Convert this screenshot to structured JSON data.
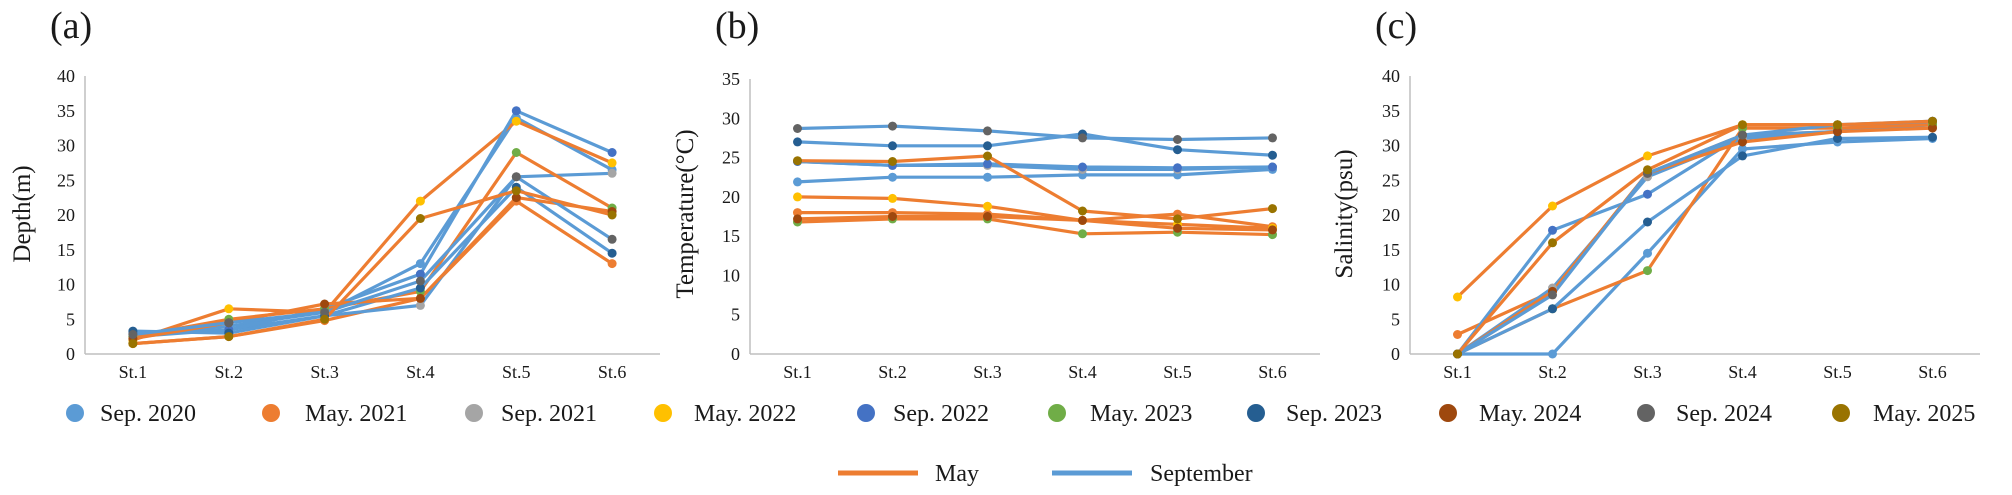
{
  "legend_items": [
    {
      "label": "Sep. 2020",
      "color": "#5b9bd5"
    },
    {
      "label": "May. 2021",
      "color": "#ed7d31"
    },
    {
      "label": "Sep. 2021",
      "color": "#a5a5a5"
    },
    {
      "label": "May. 2022",
      "color": "#ffc000"
    },
    {
      "label": "Sep. 2022",
      "color": "#4472c4"
    },
    {
      "label": "May. 2023",
      "color": "#70ad47"
    },
    {
      "label": "Sep. 2023",
      "color": "#255e91"
    },
    {
      "label": "May. 2024",
      "color": "#9e480e"
    },
    {
      "label": "Sep. 2024",
      "color": "#636363"
    },
    {
      "label": "May. 2025",
      "color": "#997300"
    }
  ],
  "line_legend": [
    {
      "label": "May",
      "color": "#ed7d31"
    },
    {
      "label": "September",
      "color": "#5b9bd5"
    }
  ],
  "chart_data": [
    {
      "type": "line",
      "panel_label": "(a)",
      "ylabel": "Depth(m)",
      "categories": [
        "St.1",
        "St.2",
        "St.3",
        "St.4",
        "St.5",
        "St.6"
      ],
      "ylim": [
        0,
        40
      ],
      "yticks": [
        0,
        5,
        10,
        15,
        20,
        25,
        30,
        35,
        40
      ],
      "grid": false,
      "series": [
        {
          "name": "Sep. 2020",
          "line": "#5b9bd5",
          "color": "#5b9bd5",
          "values": [
            2.8,
            4.0,
            6.0,
            13.0,
            34.0,
            26.5
          ]
        },
        {
          "name": "May. 2021",
          "line": "#ed7d31",
          "color": "#ed7d31",
          "values": [
            1.5,
            2.5,
            4.8,
            8.0,
            22.0,
            13.0
          ]
        },
        {
          "name": "Sep. 2021",
          "line": "#5b9bd5",
          "color": "#a5a5a5",
          "values": [
            2.5,
            3.5,
            5.5,
            7.0,
            25.5,
            26.0
          ]
        },
        {
          "name": "May. 2022",
          "line": "#ed7d31",
          "color": "#ffc000",
          "values": [
            2.0,
            6.5,
            6.0,
            22.0,
            33.5,
            27.5
          ]
        },
        {
          "name": "Sep. 2022",
          "line": "#5b9bd5",
          "color": "#4472c4",
          "values": [
            3.0,
            3.5,
            6.5,
            11.5,
            35.0,
            29.0
          ]
        },
        {
          "name": "May. 2023",
          "line": "#ed7d31",
          "color": "#70ad47",
          "values": [
            2.5,
            5.0,
            6.5,
            9.0,
            29.0,
            21.0
          ]
        },
        {
          "name": "Sep. 2023",
          "line": "#5b9bd5",
          "color": "#255e91",
          "values": [
            3.3,
            3.0,
            5.5,
            9.5,
            24.0,
            14.5
          ]
        },
        {
          "name": "May. 2024",
          "line": "#ed7d31",
          "color": "#9e480e",
          "values": [
            2.2,
            4.5,
            7.2,
            8.0,
            22.5,
            20.5
          ]
        },
        {
          "name": "Sep. 2024",
          "line": "#5b9bd5",
          "color": "#636363",
          "values": [
            2.8,
            4.5,
            6.0,
            10.5,
            25.5,
            16.5
          ]
        },
        {
          "name": "May. 2025",
          "line": "#ed7d31",
          "color": "#997300",
          "values": [
            1.5,
            2.5,
            5.0,
            19.5,
            23.5,
            20.0
          ]
        }
      ]
    },
    {
      "type": "line",
      "panel_label": "(b)",
      "ylabel": "Temperature(°C)",
      "categories": [
        "St.1",
        "St.2",
        "St.3",
        "St.4",
        "St.5",
        "St.6"
      ],
      "ylim": [
        0,
        35
      ],
      "yticks": [
        0,
        5,
        10,
        15,
        20,
        25,
        30,
        35
      ],
      "grid": false,
      "series": [
        {
          "name": "Sep. 2020",
          "line": "#5b9bd5",
          "color": "#5b9bd5",
          "values": [
            21.9,
            22.5,
            22.5,
            22.8,
            22.8,
            23.5
          ]
        },
        {
          "name": "May. 2021",
          "line": "#ed7d31",
          "color": "#ed7d31",
          "values": [
            18.0,
            18.0,
            17.8,
            17.0,
            17.8,
            16.2
          ]
        },
        {
          "name": "Sep. 2021",
          "line": "#5b9bd5",
          "color": "#a5a5a5",
          "values": [
            24.5,
            24.0,
            24.0,
            23.5,
            23.5,
            23.8
          ]
        },
        {
          "name": "May. 2022",
          "line": "#ed7d31",
          "color": "#ffc000",
          "values": [
            20.0,
            19.8,
            18.8,
            17.0,
            16.5,
            16.0
          ]
        },
        {
          "name": "Sep. 2022",
          "line": "#5b9bd5",
          "color": "#4472c4",
          "values": [
            24.5,
            24.0,
            24.2,
            23.8,
            23.7,
            23.8
          ]
        },
        {
          "name": "May. 2023",
          "line": "#ed7d31",
          "color": "#70ad47",
          "values": [
            16.8,
            17.2,
            17.2,
            15.3,
            15.5,
            15.2
          ]
        },
        {
          "name": "Sep. 2023",
          "line": "#5b9bd5",
          "color": "#255e91",
          "values": [
            27.0,
            26.5,
            26.5,
            28.0,
            26.0,
            25.3
          ]
        },
        {
          "name": "May. 2024",
          "line": "#ed7d31",
          "color": "#9e480e",
          "values": [
            17.2,
            17.5,
            17.5,
            17.0,
            16.0,
            15.8
          ]
        },
        {
          "name": "Sep. 2024",
          "line": "#5b9bd5",
          "color": "#636363",
          "values": [
            28.7,
            29.0,
            28.4,
            27.5,
            27.3,
            27.5
          ]
        },
        {
          "name": "May. 2025",
          "line": "#ed7d31",
          "color": "#997300",
          "values": [
            24.6,
            24.5,
            25.2,
            18.2,
            17.2,
            18.5
          ]
        }
      ]
    },
    {
      "type": "line",
      "panel_label": "(c)",
      "ylabel": "Salinity(psu)",
      "categories": [
        "St.1",
        "St.2",
        "St.3",
        "St.4",
        "St.5",
        "St.6"
      ],
      "ylim": [
        0,
        40
      ],
      "yticks": [
        0,
        5,
        10,
        15,
        20,
        25,
        30,
        35,
        40
      ],
      "grid": false,
      "series": [
        {
          "name": "Sep. 2020",
          "line": "#5b9bd5",
          "color": "#5b9bd5",
          "values": [
            0.0,
            0.0,
            14.5,
            29.5,
            30.5,
            31.0
          ]
        },
        {
          "name": "May. 2021",
          "line": "#ed7d31",
          "color": "#ed7d31",
          "values": [
            2.8,
            9.0,
            26.0,
            31.5,
            32.0,
            33.0
          ]
        },
        {
          "name": "Sep. 2021",
          "line": "#5b9bd5",
          "color": "#a5a5a5",
          "values": [
            0.0,
            9.5,
            25.5,
            31.0,
            32.0,
            33.0
          ]
        },
        {
          "name": "May. 2022",
          "line": "#ed7d31",
          "color": "#ffc000",
          "values": [
            8.2,
            21.3,
            28.5,
            33.0,
            33.0,
            33.0
          ]
        },
        {
          "name": "Sep. 2022",
          "line": "#5b9bd5",
          "color": "#4472c4",
          "values": [
            0.0,
            17.8,
            23.0,
            31.5,
            32.0,
            33.5
          ]
        },
        {
          "name": "May. 2023",
          "line": "#ed7d31",
          "color": "#70ad47",
          "values": [
            0.0,
            6.5,
            12.0,
            32.5,
            32.5,
            33.0
          ]
        },
        {
          "name": "Sep. 2023",
          "line": "#5b9bd5",
          "color": "#255e91",
          "values": [
            0.0,
            6.5,
            19.0,
            28.5,
            31.0,
            31.2
          ]
        },
        {
          "name": "May. 2024",
          "line": "#ed7d31",
          "color": "#9e480e",
          "values": [
            0.0,
            9.0,
            26.0,
            30.5,
            32.0,
            32.5
          ]
        },
        {
          "name": "Sep. 2024",
          "line": "#5b9bd5",
          "color": "#636363",
          "values": [
            0.0,
            8.5,
            26.0,
            31.5,
            33.0,
            33.5
          ]
        },
        {
          "name": "May. 2025",
          "line": "#ed7d31",
          "color": "#997300",
          "values": [
            0.0,
            16.0,
            26.5,
            33.0,
            33.0,
            33.5
          ]
        }
      ]
    }
  ]
}
